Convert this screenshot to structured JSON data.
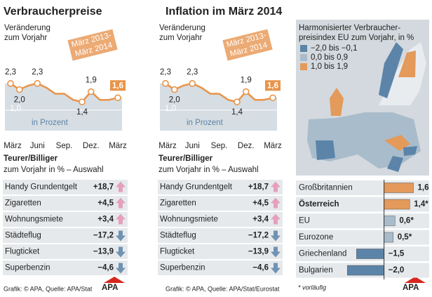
{
  "left": {
    "title": "Verbraucherpreise",
    "credit": "Grafik: © APA, Quelle: APA/Stat",
    "logo": "APA"
  },
  "right": {
    "title": "Inflation im März 2014",
    "credit": "Grafik: © APA, Quelle: APA/Stat/Eurostat",
    "logo": "APA",
    "footnote": "* vorläufig",
    "map": {
      "title": [
        "Harmonisierter Verbraucher-",
        "preisindex EU zum Vorjahr, in %"
      ],
      "legend": [
        {
          "label": "−2,0 bis −0,1",
          "color": "#5b84a8"
        },
        {
          "label": "0,0 bis 0,9",
          "color": "#a9bccb"
        },
        {
          "label": "1,0 bis 1,9",
          "color": "#e39a5a"
        }
      ]
    }
  },
  "chart_data": [
    {
      "type": "line",
      "subtitle": [
        "Veränderung",
        "zum Vorjahr"
      ],
      "annotation": [
        "März 2013-",
        "März 2014"
      ],
      "axis_label": "in Prozent",
      "categories": [
        "März",
        null,
        null,
        "Juni",
        null,
        null,
        "Sep.",
        null,
        null,
        "Dez.",
        null,
        null,
        "März"
      ],
      "values": [
        2.3,
        2.0,
        2.2,
        2.3,
        2.1,
        1.8,
        1.8,
        1.5,
        1.4,
        1.9,
        1.5,
        1.5,
        1.6
      ],
      "value_labels": [
        "2,3",
        "2,0",
        null,
        "2,3",
        null,
        null,
        null,
        null,
        "1,4",
        "1,9",
        null,
        null,
        "1,6"
      ],
      "color": "#e8944a",
      "ylim": [
        0,
        2.5
      ],
      "yticks": [
        {
          "value": 1,
          "label": "1,0"
        }
      ]
    },
    {
      "type": "arrows",
      "title": "Teurer/Billiger",
      "subtitle": "zum Vorjahr in % – Auswahl",
      "categories": [
        "Handy Grundentgelt",
        "Zigaretten",
        "Wohnungsmiete",
        "Städteflug",
        "Flugticket",
        "Superbenzin"
      ],
      "values": [
        18.7,
        4.5,
        3.4,
        -17.2,
        -13.9,
        -4.6
      ],
      "value_labels": [
        "+18,7",
        "+4,5",
        "+3,4",
        "−17,2",
        "−13,9",
        "−4,6"
      ],
      "colors": [
        "#e6a0bb",
        "#e6a0bb",
        "#e6a0bb",
        "#6f93b2",
        "#6f93b2",
        "#6f93b2"
      ]
    },
    {
      "type": "line",
      "subtitle": [
        "Veränderung",
        "zum Vorjahr"
      ],
      "annotation": [
        "März 2013-",
        "März 2014"
      ],
      "axis_label": "in Prozent",
      "categories": [
        "März",
        null,
        null,
        "Juni",
        null,
        null,
        "Sep.",
        null,
        null,
        "Dez.",
        null,
        null,
        "März"
      ],
      "values": [
        2.3,
        2.0,
        2.2,
        2.3,
        2.1,
        1.8,
        1.8,
        1.5,
        1.4,
        1.9,
        1.5,
        1.5,
        1.6
      ],
      "value_labels": [
        "2,3",
        "2,0",
        null,
        "2,3",
        null,
        null,
        null,
        null,
        "1,4",
        "1,9",
        null,
        null,
        "1,6"
      ],
      "color": "#e8944a",
      "ylim": [
        0,
        2.5
      ],
      "yticks": [
        {
          "value": 1,
          "label": "1,0"
        }
      ]
    },
    {
      "type": "arrows",
      "title": "Teurer/Billiger",
      "subtitle": "zum Vorjahr in % – Auswahl",
      "categories": [
        "Handy Grundentgelt",
        "Zigaretten",
        "Wohnungsmiete",
        "Städteflug",
        "Flugticket",
        "Superbenzin"
      ],
      "values": [
        18.7,
        4.5,
        3.4,
        -17.2,
        -13.9,
        -4.6
      ],
      "value_labels": [
        "+18,7",
        "+4,5",
        "+3,4",
        "−17,2",
        "−13,9",
        "−4,6"
      ],
      "colors": [
        "#e6a0bb",
        "#e6a0bb",
        "#e6a0bb",
        "#6f93b2",
        "#6f93b2",
        "#6f93b2"
      ]
    },
    {
      "type": "hbar",
      "categories": [
        "Großbritannien",
        "Österreich",
        "EU",
        "Eurozone",
        "Griechenland",
        "Bulgarien"
      ],
      "values": [
        1.6,
        1.4,
        0.6,
        0.5,
        -1.5,
        -2.0
      ],
      "value_labels": [
        "1,6",
        "1,4*",
        "0,6*",
        "0,5*",
        "−1,5",
        "−2,0"
      ],
      "colors": [
        "#e39a5a",
        "#e39a5a",
        "#a9bccb",
        "#a9bccb",
        "#5b84a8",
        "#5b84a8"
      ],
      "bold": [
        false,
        true,
        false,
        false,
        false,
        false
      ],
      "xlim": [
        -2.2,
        2.0
      ]
    }
  ]
}
